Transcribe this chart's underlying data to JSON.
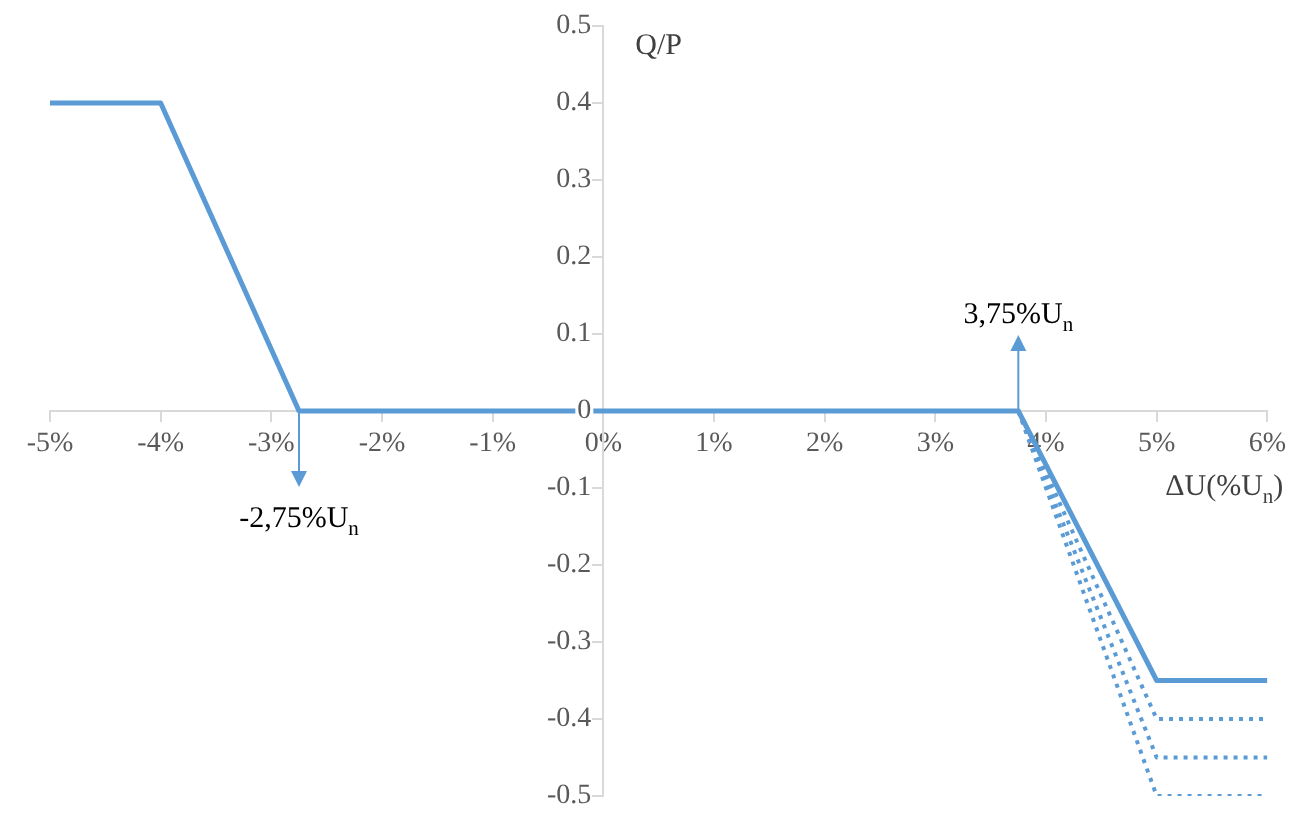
{
  "chart_data": {
    "type": "line",
    "xlabel": "ΔU(%U$_{n}$)",
    "ylabel": "Q/P",
    "xlim": [
      -5,
      6
    ],
    "ylim": [
      -0.5,
      0.5
    ],
    "xticks": [
      {
        "value": -5,
        "label": "-5%"
      },
      {
        "value": -4,
        "label": "-4%"
      },
      {
        "value": -3,
        "label": "-3%"
      },
      {
        "value": -2,
        "label": "-2%"
      },
      {
        "value": -1,
        "label": "-1%"
      },
      {
        "value": 0,
        "label": "0%"
      },
      {
        "value": 1,
        "label": "1%"
      },
      {
        "value": 2,
        "label": "2%"
      },
      {
        "value": 3,
        "label": "3%"
      },
      {
        "value": 4,
        "label": "4%"
      },
      {
        "value": 5,
        "label": "5%"
      },
      {
        "value": 6,
        "label": "6%"
      }
    ],
    "yticks": [
      0.5,
      0.4,
      0.3,
      0.2,
      0.1,
      0,
      -0.1,
      -0.2,
      -0.3,
      -0.4,
      -0.5
    ],
    "series": [
      {
        "color": "#5b9bd5",
        "line_style": "dotted",
        "x": [
          3.75,
          5,
          6
        ],
        "values": [
          0,
          -0.5,
          -0.5
        ]
      },
      {
        "color": "#5b9bd5",
        "line_style": "dotted",
        "x": [
          3.75,
          5,
          6
        ],
        "values": [
          0,
          -0.45,
          -0.45
        ]
      },
      {
        "color": "#5b9bd5",
        "line_style": "dotted",
        "x": [
          3.75,
          5,
          6
        ],
        "values": [
          0,
          -0.4,
          -0.4
        ]
      },
      {
        "color": "#5b9bd5",
        "line_style": "solid",
        "x": [
          -5,
          -4,
          -2.75,
          3.75,
          5,
          6
        ],
        "values": [
          0.4,
          0.4,
          0,
          0,
          -0.35,
          -0.35
        ]
      }
    ],
    "annotations": [
      {
        "text": "-2,75%U$_{n}$",
        "x": -2.75,
        "y": 0
      },
      {
        "text": "3,75%U$_{n}$",
        "x": 3.75,
        "y": 0
      }
    ],
    "marker": "none",
    "grid": false,
    "legend": false
  }
}
